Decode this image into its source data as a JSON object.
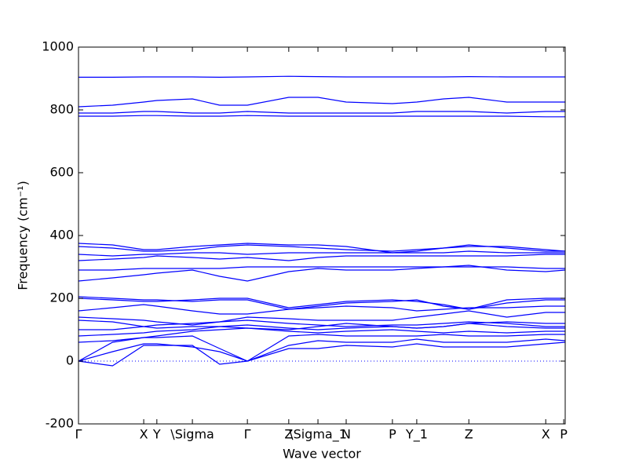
{
  "chart_data": {
    "type": "line",
    "xlabel": "Wave vector",
    "ylabel": "Frequency (cm⁻¹)",
    "color": "#0000ff",
    "xlim": [
      0,
      1
    ],
    "ylim": [
      -200,
      1000
    ],
    "yticks": [
      -200,
      0,
      200,
      400,
      600,
      800,
      1000
    ],
    "xticks": [
      {
        "value": 0,
        "label": "Γ"
      },
      {
        "value": 0.134,
        "label": "X"
      },
      {
        "value": 0.161,
        "label": "Y"
      },
      {
        "value": 0.234,
        "label": "\\Sigma"
      },
      {
        "value": 0.347,
        "label": "Γ"
      },
      {
        "value": 0.432,
        "label": "Z"
      },
      {
        "value": 0.492,
        "label": "\\Sigma_1"
      },
      {
        "value": 0.55,
        "label": "N"
      },
      {
        "value": 0.645,
        "label": "P"
      },
      {
        "value": 0.695,
        "label": "Y_1"
      },
      {
        "value": 0.802,
        "label": "Z"
      },
      {
        "value": 0.96,
        "label": "X"
      },
      {
        "value": 0.997,
        "label": "P"
      }
    ],
    "hline": 0,
    "x": [
      0,
      0.07,
      0.134,
      0.161,
      0.234,
      0.29,
      0.347,
      0.432,
      0.492,
      0.55,
      0.645,
      0.695,
      0.75,
      0.802,
      0.88,
      0.96,
      1.0
    ],
    "series": [
      {
        "values": [
          0,
          -15,
          50,
          50,
          50,
          -10,
          0,
          40,
          40,
          50,
          45,
          55,
          45,
          45,
          45,
          55,
          60
        ]
      },
      {
        "values": [
          0,
          30,
          55,
          55,
          45,
          30,
          0,
          50,
          65,
          60,
          60,
          70,
          60,
          60,
          60,
          70,
          65
        ]
      },
      {
        "values": [
          0,
          60,
          75,
          75,
          80,
          40,
          0,
          80,
          85,
          80,
          80,
          80,
          85,
          80,
          80,
          85,
          85
        ]
      },
      {
        "values": [
          60,
          65,
          75,
          80,
          95,
          100,
          105,
          95,
          90,
          95,
          100,
          95,
          90,
          95,
          90,
          95,
          95
        ]
      },
      {
        "values": [
          80,
          85,
          90,
          95,
          100,
          110,
          115,
          105,
          100,
          105,
          110,
          105,
          110,
          120,
          110,
          105,
          105
        ]
      },
      {
        "values": [
          100,
          100,
          110,
          115,
          120,
          125,
          130,
          120,
          115,
          110,
          115,
          115,
          120,
          125,
          120,
          110,
          110
        ]
      },
      {
        "values": [
          130,
          125,
          110,
          105,
          110,
          110,
          105,
          100,
          110,
          120,
          110,
          105,
          110,
          120,
          125,
          120,
          120
        ]
      },
      {
        "values": [
          140,
          135,
          130,
          125,
          115,
          125,
          140,
          135,
          130,
          130,
          130,
          140,
          150,
          160,
          140,
          155,
          155
        ]
      },
      {
        "values": [
          160,
          170,
          180,
          175,
          160,
          150,
          150,
          165,
          170,
          175,
          170,
          160,
          165,
          170,
          170,
          175,
          175
        ]
      },
      {
        "values": [
          200,
          195,
          190,
          190,
          195,
          200,
          200,
          170,
          180,
          190,
          195,
          190,
          180,
          165,
          185,
          195,
          195
        ]
      },
      {
        "values": [
          205,
          200,
          195,
          195,
          190,
          195,
          195,
          165,
          175,
          185,
          190,
          195,
          175,
          165,
          195,
          200,
          200
        ]
      },
      {
        "values": [
          255,
          265,
          275,
          280,
          290,
          270,
          255,
          285,
          295,
          290,
          290,
          295,
          300,
          305,
          290,
          285,
          290
        ]
      },
      {
        "values": [
          290,
          290,
          295,
          295,
          295,
          295,
          300,
          300,
          300,
          300,
          300,
          300,
          300,
          300,
          300,
          295,
          295
        ]
      },
      {
        "values": [
          320,
          325,
          330,
          335,
          330,
          325,
          330,
          320,
          330,
          335,
          335,
          335,
          335,
          335,
          335,
          340,
          340
        ]
      },
      {
        "values": [
          340,
          335,
          340,
          340,
          345,
          345,
          340,
          345,
          345,
          345,
          345,
          345,
          345,
          350,
          345,
          345,
          345
        ]
      },
      {
        "values": [
          365,
          360,
          350,
          350,
          355,
          365,
          370,
          365,
          360,
          355,
          350,
          355,
          360,
          365,
          365,
          355,
          350
        ]
      },
      {
        "values": [
          375,
          370,
          355,
          355,
          365,
          370,
          375,
          370,
          370,
          365,
          345,
          350,
          360,
          370,
          360,
          350,
          350
        ]
      },
      {
        "values": [
          780,
          780,
          782,
          782,
          780,
          780,
          782,
          780,
          780,
          780,
          780,
          780,
          780,
          780,
          780,
          778,
          778
        ]
      },
      {
        "values": [
          790,
          790,
          795,
          795,
          790,
          790,
          795,
          790,
          790,
          790,
          790,
          795,
          795,
          795,
          790,
          795,
          795
        ]
      },
      {
        "values": [
          810,
          815,
          825,
          830,
          835,
          815,
          815,
          840,
          840,
          825,
          820,
          825,
          835,
          840,
          825,
          825,
          825
        ]
      },
      {
        "values": [
          904,
          904,
          905,
          905,
          905,
          904,
          905,
          907,
          906,
          905,
          905,
          905,
          905,
          906,
          905,
          905,
          905
        ]
      }
    ]
  }
}
